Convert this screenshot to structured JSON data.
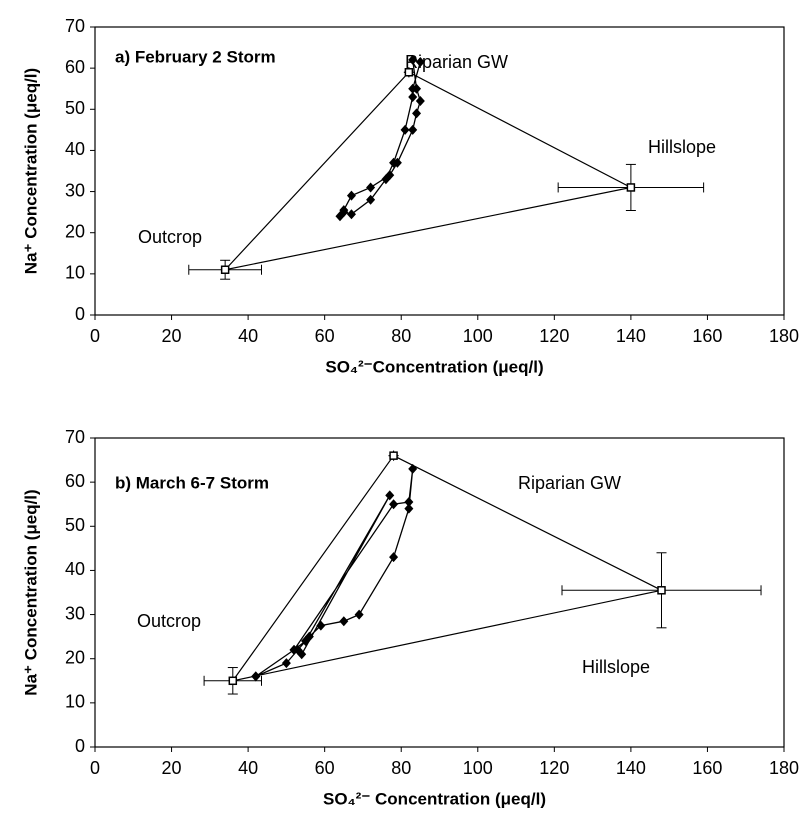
{
  "chart_data": [
    {
      "type": "scatter",
      "annotations": [
        "a) February 2 Storm",
        "Riparian GW",
        "Hillslope",
        "Outcrop"
      ],
      "xlabel": "SO₄²⁻Concentration (μeq/l)",
      "ylabel": "Na⁺ Concentration (μeq/l)",
      "xlim": [
        0,
        180
      ],
      "xticks": [
        0,
        20,
        40,
        60,
        80,
        100,
        120,
        140,
        160,
        180
      ],
      "ylim": [
        0,
        70
      ],
      "yticks": [
        0,
        10,
        20,
        30,
        40,
        50,
        60,
        70
      ],
      "grid": false,
      "series": [
        {
          "color": "#000000",
          "marker": "diamond",
          "line": true,
          "x": [
            64,
            65,
            67,
            72,
            77,
            79,
            83,
            84,
            85,
            84,
            83,
            85,
            83,
            83,
            81,
            78,
            76,
            72,
            67,
            65
          ],
          "values": [
            24,
            25.5,
            29,
            31,
            34,
            37,
            45,
            49,
            52,
            55,
            62,
            61.5,
            55,
            53,
            45,
            37,
            33,
            28,
            24.5,
            25
          ]
        },
        {
          "color": "#000000",
          "marker": "square",
          "line": false,
          "polygon": true,
          "x": [
            34,
            82,
            140
          ],
          "values": [
            11,
            59,
            31
          ],
          "xerr": [
            9.5,
            0,
            19
          ],
          "yerr": [
            2.3,
            0,
            5.6
          ]
        }
      ]
    },
    {
      "type": "scatter",
      "annotations": [
        "b) March 6-7 Storm",
        "Riparian GW",
        "Outcrop",
        "Hillslope"
      ],
      "xlabel": "SO₄²⁻ Concentration (μeq/l)",
      "ylabel": "Na⁺ Concentration (μeq/l)",
      "xlim": [
        0,
        180
      ],
      "xticks": [
        0,
        20,
        40,
        60,
        80,
        100,
        120,
        140,
        160,
        180
      ],
      "ylim": [
        0,
        70
      ],
      "yticks": [
        0,
        10,
        20,
        30,
        40,
        50,
        60,
        70
      ],
      "grid": false,
      "series": [
        {
          "color": "#000000",
          "marker": "diamond",
          "line": true,
          "x": [
            42,
            50,
            53,
            56,
            59,
            65,
            69,
            78,
            82,
            83,
            82,
            78,
            52,
            54,
            77,
            55,
            52,
            42
          ],
          "values": [
            16,
            19,
            22,
            25,
            27.5,
            28.5,
            30,
            43,
            54,
            63,
            55.5,
            55,
            22,
            21,
            57,
            24,
            22,
            16
          ]
        },
        {
          "color": "#000000",
          "marker": "square",
          "line": false,
          "polygon": true,
          "x": [
            36,
            78,
            148
          ],
          "values": [
            15,
            66,
            35.5
          ],
          "xerr": [
            7.5,
            0,
            26
          ],
          "yerr": [
            3,
            0,
            8.5
          ]
        }
      ]
    }
  ]
}
